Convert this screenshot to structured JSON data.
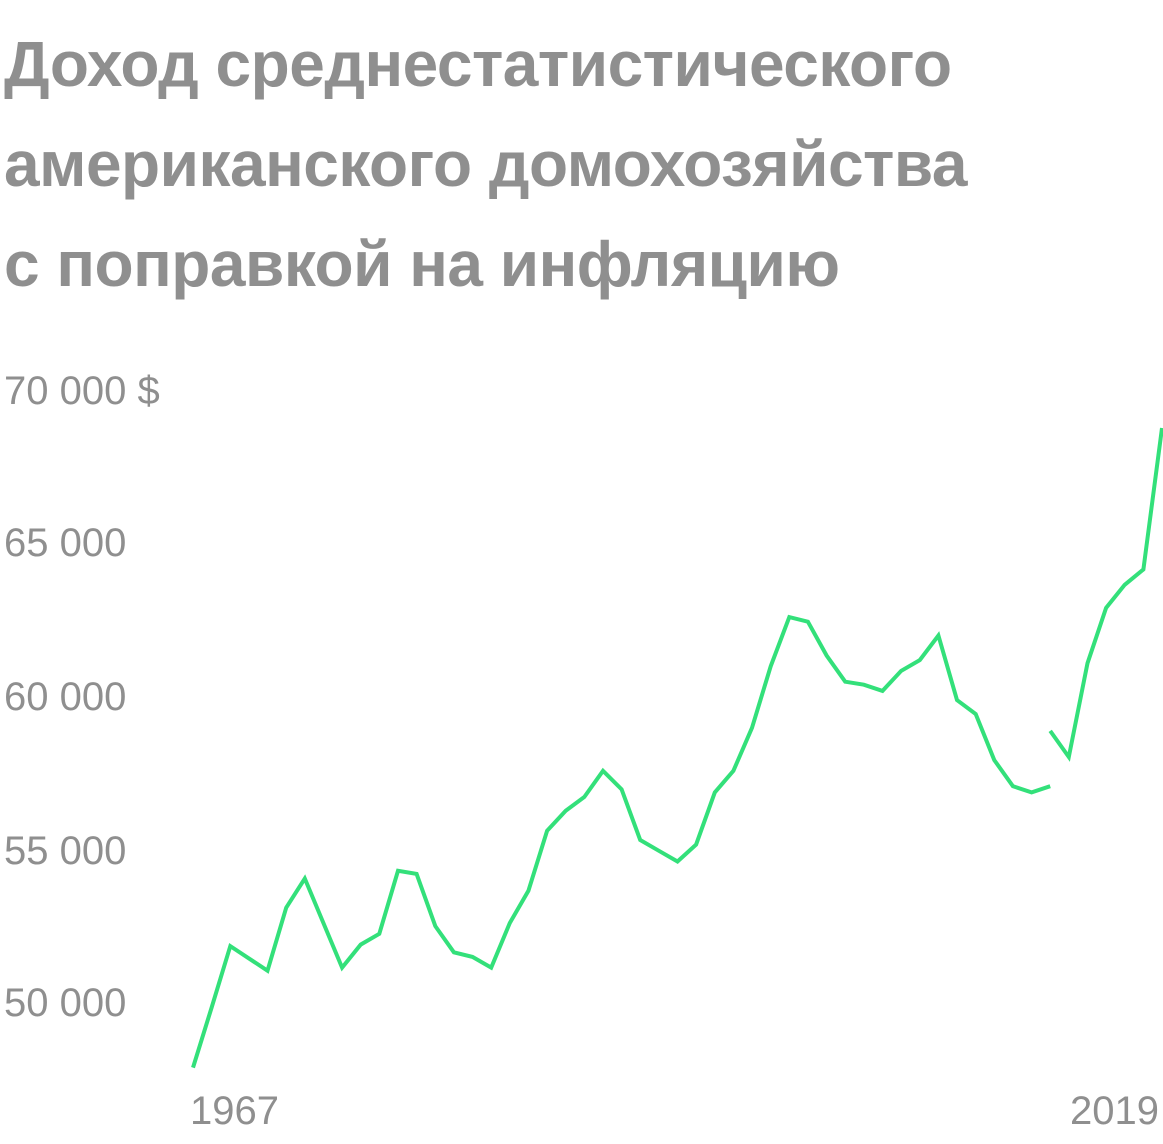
{
  "title_lines": [
    "Доход среднестатистического",
    "американского домохозяйства",
    "с поправкой на инфляцию"
  ],
  "colors": {
    "line": "#33e07a",
    "text": "#8f8f8f",
    "background": "#ffffff"
  },
  "chart_data": {
    "type": "line",
    "title": "Доход среднестатистического американского домохозяйства с поправкой на инфляцию",
    "y_tick_labels": [
      "70 000 $",
      "65 000",
      "60 000",
      "55 000",
      "50 000"
    ],
    "y_ticks": [
      70000,
      65000,
      60000,
      55000,
      50000
    ],
    "x_tick_labels": [
      "1967",
      "2019"
    ],
    "ylim": [
      47000,
      70000
    ],
    "xlim": [
      1967,
      2019
    ],
    "grid": false,
    "series": [
      {
        "segments": [
          {
            "x": [
              1967,
              1968,
              1969,
              1970,
              1971,
              1972,
              1973,
              1974,
              1975,
              1976,
              1977,
              1978,
              1979,
              1980,
              1981,
              1982,
              1983,
              1984,
              1985,
              1986,
              1987,
              1988,
              1989,
              1990,
              1991,
              1992,
              1993,
              1994,
              1995,
              1996,
              1997,
              1998,
              1999,
              2000,
              2001,
              2002,
              2003,
              2004,
              2005,
              2006,
              2007,
              2008,
              2009,
              2010,
              2011,
              2012,
              2013
            ],
            "y": [
              47900,
              49850,
              51850,
              51450,
              51050,
              53100,
              54050,
              52600,
              51150,
              51900,
              52250,
              54300,
              54200,
              52500,
              51650,
              51500,
              51150,
              52600,
              53650,
              55600,
              56250,
              56700,
              57550,
              56950,
              55300,
              54950,
              54600,
              55150,
              56850,
              57550,
              58950,
              60950,
              62550,
              62400,
              61300,
              60450,
              60350,
              60150,
              60800,
              61150,
              61950,
              59850,
              59400,
              57900,
              57050,
              56850,
              57050
            ]
          },
          {
            "x": [
              2013,
              2014,
              2015,
              2016,
              2017,
              2018,
              2019
            ],
            "y": [
              58850,
              58000,
              61050,
              62850,
              63600,
              64100,
              68700
            ]
          }
        ]
      }
    ]
  }
}
